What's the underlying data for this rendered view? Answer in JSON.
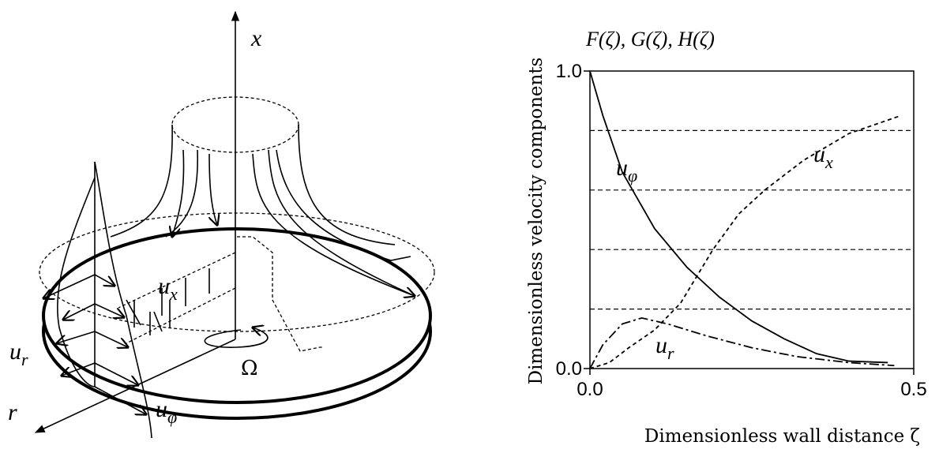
{
  "diagram": {
    "labels": {
      "x": "x",
      "ux": "ux",
      "ur": "ur",
      "r": "r",
      "uphi": "uφ",
      "omega": "Ω"
    }
  },
  "chart_data": {
    "type": "line",
    "title": "F(ζ), G(ζ), H(ζ)",
    "y_label": "Dimensionless velocity components",
    "x_label": "Dimensionless wall distance ζ",
    "xlim": [
      0,
      0.5
    ],
    "ylim": [
      0,
      1
    ],
    "xticks": [
      {
        "value": 0,
        "label": "0.0"
      },
      {
        "value": 0.5,
        "label": "0.5"
      }
    ],
    "yticks": [
      {
        "value": 0,
        "label": "0.0"
      },
      {
        "value": 1,
        "label": "1.0"
      }
    ],
    "grid_values": [
      0.2,
      0.4,
      0.6,
      0.8
    ],
    "series": [
      {
        "name": "uφ",
        "color": "#000",
        "style": "solid",
        "x": [
          0,
          0.02,
          0.05,
          0.1,
          0.15,
          0.2,
          0.25,
          0.3,
          0.35,
          0.4,
          0.46
        ],
        "values": [
          1,
          0.85,
          0.66,
          0.47,
          0.34,
          0.24,
          0.16,
          0.1,
          0.05,
          0.025,
          0.02
        ]
      },
      {
        "name": "ux",
        "color": "#000",
        "style": "dashed",
        "x": [
          0,
          0.03,
          0.06,
          0.1,
          0.14,
          0.19,
          0.23,
          0.27,
          0.33,
          0.4,
          0.48
        ],
        "values": [
          0,
          0.02,
          0.07,
          0.13,
          0.22,
          0.4,
          0.52,
          0.6,
          0.7,
          0.79,
          0.85
        ]
      },
      {
        "name": "ur",
        "color": "#000",
        "style": "dashdot",
        "x": [
          0,
          0.02,
          0.05,
          0.08,
          0.12,
          0.18,
          0.25,
          0.32,
          0.4,
          0.47
        ],
        "values": [
          0,
          0.08,
          0.15,
          0.17,
          0.15,
          0.11,
          0.07,
          0.04,
          0.02,
          0.01
        ]
      }
    ]
  }
}
